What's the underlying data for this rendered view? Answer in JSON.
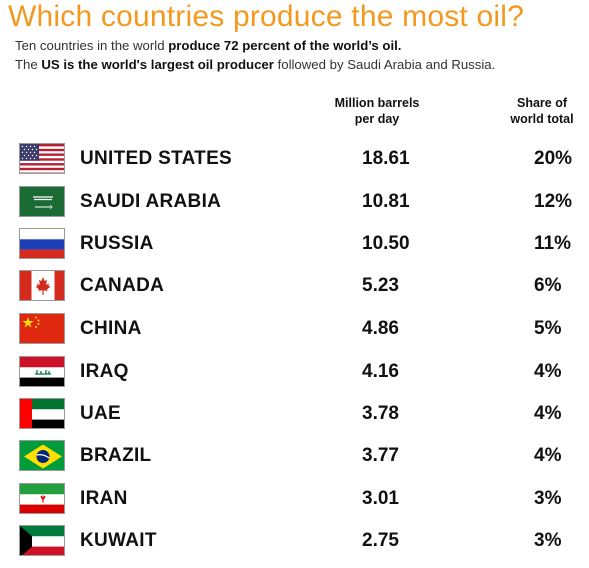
{
  "header": {
    "title": "Which countries produce the most oil?",
    "subtitle_line1": {
      "pre": "Ten countries in the world ",
      "bold": "produce 72 percent of the world’s oil."
    },
    "subtitle_line2": {
      "pre": "The ",
      "bold": "US is the world's largest oil producer",
      "post": " followed by Saudi Arabia and Russia."
    }
  },
  "columns": {
    "barrels_line1": "Million barrels",
    "barrels_line2": "per day",
    "share_line1": "Share of",
    "share_line2": "world total"
  },
  "rows": [
    {
      "country": "UNITED STATES",
      "barrels": "18.61",
      "share": "20%",
      "flag": "flag-usa-icon"
    },
    {
      "country": "SAUDI ARABIA",
      "barrels": "10.81",
      "share": "12%",
      "flag": "flag-saudi-arabia-icon"
    },
    {
      "country": "RUSSIA",
      "barrels": "10.50",
      "share": "11%",
      "flag": "flag-russia-icon"
    },
    {
      "country": "CANADA",
      "barrels": "5.23",
      "share": "6%",
      "flag": "flag-canada-icon"
    },
    {
      "country": "CHINA",
      "barrels": "4.86",
      "share": "5%",
      "flag": "flag-china-icon"
    },
    {
      "country": "IRAQ",
      "barrels": "4.16",
      "share": "4%",
      "flag": "flag-iraq-icon"
    },
    {
      "country": "UAE",
      "barrels": "3.78",
      "share": "4%",
      "flag": "flag-uae-icon"
    },
    {
      "country": "BRAZIL",
      "barrels": "3.77",
      "share": "4%",
      "flag": "flag-brazil-icon"
    },
    {
      "country": "IRAN",
      "barrels": "3.01",
      "share": "3%",
      "flag": "flag-iran-icon"
    },
    {
      "country": "KUWAIT",
      "barrels": "2.75",
      "share": "3%",
      "flag": "flag-kuwait-icon"
    }
  ],
  "colors": {
    "title": "#f29a1f",
    "text": "#111111"
  }
}
